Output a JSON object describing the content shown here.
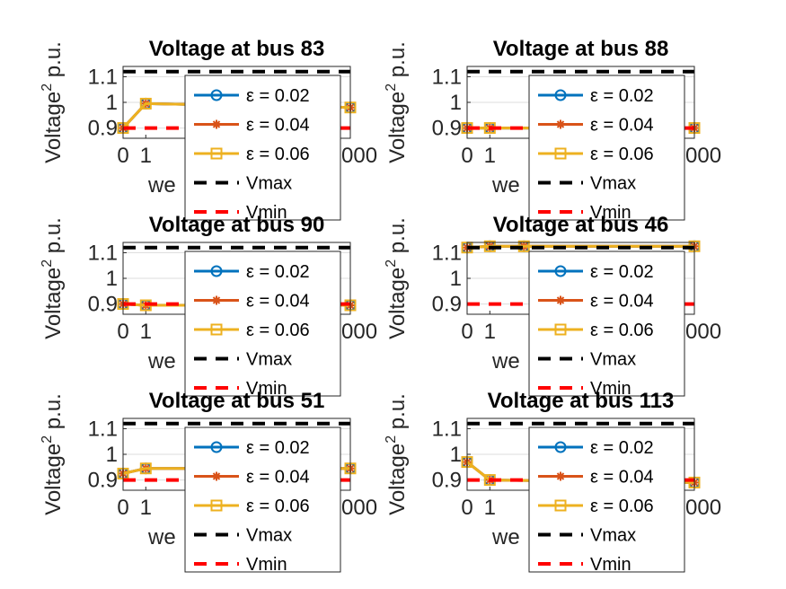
{
  "chart_data": [
    {
      "type": "line",
      "title": "Voltage at bus 83",
      "xlabel": "we",
      "ylabel": "Voltage",
      "ylabel_sup": "2",
      "ylabel_suffix": " p.u.",
      "x_ticks": [
        "0",
        "1",
        "000"
      ],
      "y_ticks": [
        "0.9",
        "1",
        "1.1"
      ],
      "xlim": [
        0,
        1000
      ],
      "ylim": [
        0.86,
        1.14
      ],
      "grid": true,
      "legend_position": "inside-right",
      "x": [
        0,
        100,
        1000
      ],
      "series": [
        {
          "name": "ε  = 0.02",
          "color": "#0072BD",
          "marker": "circle",
          "values": [
            0.9,
            0.995,
            0.98
          ]
        },
        {
          "name": "ε  = 0.04",
          "color": "#D95319",
          "marker": "asterisk",
          "values": [
            0.9,
            0.995,
            0.98
          ]
        },
        {
          "name": "ε  = 0.06",
          "color": "#EDB120",
          "marker": "square",
          "values": [
            0.9,
            0.995,
            0.98
          ]
        },
        {
          "name": "Vmax",
          "color": "#000000",
          "dashed": true,
          "values": [
            1.12,
            1.12,
            1.12
          ]
        },
        {
          "name": "Vmin",
          "color": "#FF0000",
          "dashed": true,
          "values": [
            0.9,
            0.9,
            0.9
          ]
        }
      ]
    },
    {
      "type": "line",
      "title": "Voltage at bus 88",
      "xlabel": "we",
      "ylabel": "Voltage",
      "ylabel_sup": "2",
      "ylabel_suffix": " p.u.",
      "x_ticks": [
        "0",
        "1",
        "000"
      ],
      "y_ticks": [
        "0.9",
        "1",
        "1.1"
      ],
      "xlim": [
        0,
        1000
      ],
      "ylim": [
        0.86,
        1.14
      ],
      "grid": true,
      "legend_position": "inside-right",
      "x": [
        0,
        100,
        1000
      ],
      "series": [
        {
          "name": "ε  = 0.02",
          "color": "#0072BD",
          "marker": "circle",
          "values": [
            0.9,
            0.9,
            0.9
          ]
        },
        {
          "name": "ε  = 0.04",
          "color": "#D95319",
          "marker": "asterisk",
          "values": [
            0.9,
            0.9,
            0.9
          ]
        },
        {
          "name": "ε  = 0.06",
          "color": "#EDB120",
          "marker": "square",
          "values": [
            0.9,
            0.9,
            0.9
          ]
        },
        {
          "name": "Vmax",
          "color": "#000000",
          "dashed": true,
          "values": [
            1.12,
            1.12,
            1.12
          ]
        },
        {
          "name": "Vmin",
          "color": "#FF0000",
          "dashed": true,
          "values": [
            0.9,
            0.9,
            0.9
          ]
        }
      ]
    },
    {
      "type": "line",
      "title": "Voltage at bus 90",
      "xlabel": "we",
      "ylabel": "Voltage",
      "ylabel_sup": "2",
      "ylabel_suffix": " p.u.",
      "x_ticks": [
        "0",
        "1",
        "000"
      ],
      "y_ticks": [
        "0.9",
        "1",
        "1.1"
      ],
      "xlim": [
        0,
        1000
      ],
      "ylim": [
        0.86,
        1.14
      ],
      "grid": true,
      "legend_position": "inside-right",
      "x": [
        0,
        100,
        1000
      ],
      "series": [
        {
          "name": "ε  = 0.02",
          "color": "#0072BD",
          "marker": "circle",
          "values": [
            0.9,
            0.895,
            0.895
          ]
        },
        {
          "name": "ε  = 0.04",
          "color": "#D95319",
          "marker": "asterisk",
          "values": [
            0.9,
            0.895,
            0.895
          ]
        },
        {
          "name": "ε  = 0.06",
          "color": "#EDB120",
          "marker": "square",
          "values": [
            0.9,
            0.895,
            0.895
          ]
        },
        {
          "name": "Vmax",
          "color": "#000000",
          "dashed": true,
          "values": [
            1.12,
            1.12,
            1.12
          ]
        },
        {
          "name": "Vmin",
          "color": "#FF0000",
          "dashed": true,
          "values": [
            0.9,
            0.9,
            0.9
          ]
        }
      ]
    },
    {
      "type": "line",
      "title": "Voltage at bus 46",
      "xlabel": "we",
      "ylabel": "Voltage",
      "ylabel_sup": "2",
      "ylabel_suffix": " p.u.",
      "x_ticks": [
        "0",
        "1",
        "000"
      ],
      "y_ticks": [
        "0.9",
        "1",
        "1.1"
      ],
      "xlim": [
        0,
        1000
      ],
      "ylim": [
        0.86,
        1.14
      ],
      "grid": true,
      "legend_position": "inside-right",
      "x": [
        0,
        100,
        250,
        1000
      ],
      "series": [
        {
          "name": "ε  = 0.02",
          "color": "#0072BD",
          "marker": "circle",
          "values": [
            1.12,
            1.125,
            1.125,
            1.125
          ]
        },
        {
          "name": "ε  = 0.04",
          "color": "#D95319",
          "marker": "asterisk",
          "values": [
            1.12,
            1.125,
            1.125,
            1.125
          ]
        },
        {
          "name": "ε  = 0.06",
          "color": "#EDB120",
          "marker": "square",
          "values": [
            1.12,
            1.125,
            1.125,
            1.125
          ]
        },
        {
          "name": "Vmax",
          "color": "#000000",
          "dashed": true,
          "values": [
            1.12,
            1.12,
            1.12,
            1.12
          ]
        },
        {
          "name": "Vmin",
          "color": "#FF0000",
          "dashed": true,
          "values": [
            0.9,
            0.9,
            0.9,
            0.9
          ]
        }
      ]
    },
    {
      "type": "line",
      "title": "Voltage at bus 51",
      "xlabel": "we",
      "ylabel": "Voltage",
      "ylabel_sup": "2",
      "ylabel_suffix": " p.u.",
      "x_ticks": [
        "0",
        "1",
        "000"
      ],
      "y_ticks": [
        "0.9",
        "1",
        "1.1"
      ],
      "xlim": [
        0,
        1000
      ],
      "ylim": [
        0.86,
        1.14
      ],
      "grid": true,
      "legend_position": "inside-right",
      "x": [
        0,
        100,
        1000
      ],
      "series": [
        {
          "name": "ε  = 0.02",
          "color": "#0072BD",
          "marker": "circle",
          "values": [
            0.925,
            0.945,
            0.945
          ]
        },
        {
          "name": "ε  = 0.04",
          "color": "#D95319",
          "marker": "asterisk",
          "values": [
            0.925,
            0.945,
            0.945
          ]
        },
        {
          "name": "ε  = 0.06",
          "color": "#EDB120",
          "marker": "square",
          "values": [
            0.925,
            0.945,
            0.945
          ]
        },
        {
          "name": "Vmax",
          "color": "#000000",
          "dashed": true,
          "values": [
            1.12,
            1.12,
            1.12
          ]
        },
        {
          "name": "Vmin",
          "color": "#FF0000",
          "dashed": true,
          "values": [
            0.9,
            0.9,
            0.9
          ]
        }
      ]
    },
    {
      "type": "line",
      "title": "Voltage at bus 113",
      "xlabel": "we",
      "ylabel": "Voltage",
      "ylabel_sup": "2",
      "ylabel_suffix": " p.u.",
      "x_ticks": [
        "0",
        "1",
        "000"
      ],
      "y_ticks": [
        "0.9",
        "1",
        "1.1"
      ],
      "xlim": [
        0,
        1000
      ],
      "ylim": [
        0.86,
        1.14
      ],
      "grid": true,
      "legend_position": "inside-right",
      "x": [
        0,
        100,
        1000
      ],
      "series": [
        {
          "name": "ε  = 0.02",
          "color": "#0072BD",
          "marker": "circle",
          "values": [
            0.97,
            0.9,
            0.89
          ]
        },
        {
          "name": "ε  = 0.04",
          "color": "#D95319",
          "marker": "asterisk",
          "values": [
            0.97,
            0.9,
            0.89
          ]
        },
        {
          "name": "ε  = 0.06",
          "color": "#EDB120",
          "marker": "square",
          "values": [
            0.97,
            0.9,
            0.89
          ]
        },
        {
          "name": "Vmax",
          "color": "#000000",
          "dashed": true,
          "values": [
            1.12,
            1.12,
            1.12
          ]
        },
        {
          "name": "Vmin",
          "color": "#FF0000",
          "dashed": true,
          "values": [
            0.9,
            0.9,
            0.9
          ]
        }
      ]
    }
  ]
}
